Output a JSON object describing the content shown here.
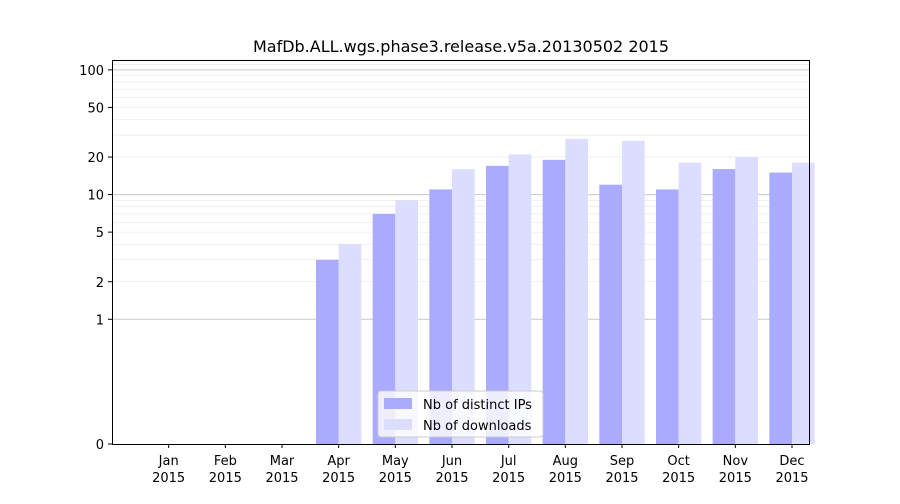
{
  "chart_data": {
    "type": "bar",
    "title": "MafDb.ALL.wgs.phase3.release.v5a.20130502 2015",
    "xlabel": "",
    "ylabel": "",
    "y_scale": "symlog",
    "ylim": [
      0,
      120
    ],
    "y_ticks": [
      {
        "value": 0,
        "label": "0"
      },
      {
        "value": 1,
        "label": "1"
      },
      {
        "value": 2,
        "label": "2"
      },
      {
        "value": 5,
        "label": "5"
      },
      {
        "value": 10,
        "label": "10"
      },
      {
        "value": 20,
        "label": "20"
      },
      {
        "value": 50,
        "label": "50"
      },
      {
        "value": 100,
        "label": "100"
      }
    ],
    "categories": [
      {
        "month": "Jan",
        "year": "2015"
      },
      {
        "month": "Feb",
        "year": "2015"
      },
      {
        "month": "Mar",
        "year": "2015"
      },
      {
        "month": "Apr",
        "year": "2015"
      },
      {
        "month": "May",
        "year": "2015"
      },
      {
        "month": "Jun",
        "year": "2015"
      },
      {
        "month": "Jul",
        "year": "2015"
      },
      {
        "month": "Aug",
        "year": "2015"
      },
      {
        "month": "Sep",
        "year": "2015"
      },
      {
        "month": "Oct",
        "year": "2015"
      },
      {
        "month": "Nov",
        "year": "2015"
      },
      {
        "month": "Dec",
        "year": "2015"
      }
    ],
    "series": [
      {
        "name": "Nb of distinct IPs",
        "color": "#aaaaff",
        "values": [
          0,
          0,
          0,
          3,
          7,
          11,
          17,
          19,
          12,
          11,
          16,
          15
        ]
      },
      {
        "name": "Nb of downloads",
        "color": "#ddddff",
        "values": [
          0,
          0,
          0,
          4,
          9,
          16,
          21,
          28,
          27,
          18,
          20,
          18
        ]
      }
    ],
    "grid": true,
    "legend_position": "bottom-center"
  }
}
